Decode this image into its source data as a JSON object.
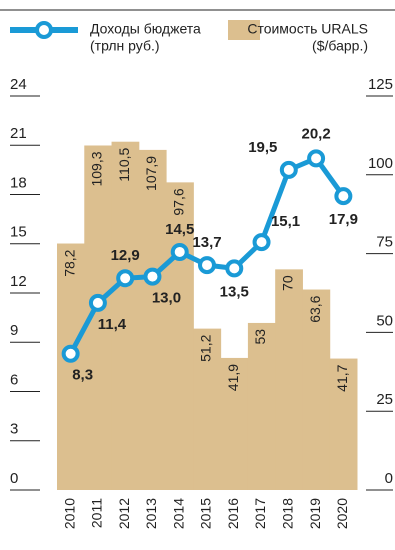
{
  "chart_data": {
    "type": "bar-line",
    "categories": [
      "2010",
      "2011",
      "2012",
      "2013",
      "2014",
      "2015",
      "2016",
      "2017",
      "2018",
      "2019",
      "2020"
    ],
    "series": [
      {
        "name": "Стоимость URALS",
        "unit": "($/барр.)",
        "type": "bar",
        "axis": "y2",
        "color": "#dcbf8f",
        "values": [
          78.2,
          109.3,
          110.5,
          107.9,
          97.6,
          51.2,
          41.9,
          53,
          70,
          63.6,
          41.7
        ],
        "value_labels": [
          "78,2",
          "109,3",
          "110,5",
          "107,9",
          "97,6",
          "51,2",
          "41,9",
          "53",
          "70",
          "63,6",
          "41,7"
        ]
      },
      {
        "name": "Доходы бюджета",
        "unit": "(трлн руб.)",
        "type": "line",
        "axis": "y",
        "color": "#1a9ad6",
        "values": [
          8.3,
          11.4,
          12.9,
          13.0,
          14.5,
          13.7,
          13.5,
          15.1,
          19.5,
          20.2,
          17.9
        ],
        "value_labels": [
          "8,3",
          "11,4",
          "12,9",
          "13,0",
          "14,5",
          "13,7",
          "13,5",
          "15,1",
          "19,5",
          "20,2",
          "17,9"
        ]
      }
    ],
    "ylim": [
      0,
      24
    ],
    "yticks": [
      0,
      3,
      6,
      9,
      12,
      15,
      18,
      21,
      24
    ],
    "y2lim": [
      0,
      125
    ],
    "y2ticks": [
      0,
      25,
      50,
      75,
      100,
      125
    ]
  }
}
